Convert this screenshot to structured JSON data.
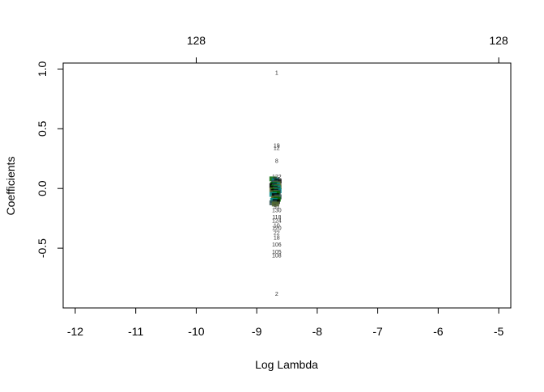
{
  "chart_data": {
    "type": "scatter",
    "title": "",
    "xlabel": "Log Lambda",
    "ylabel": "Coefficients",
    "xlim": [
      -12.2,
      -4.8
    ],
    "ylim": [
      -1.0,
      1.05
    ],
    "x_ticks": [
      -12,
      -11,
      -10,
      -9,
      -8,
      -7,
      -6,
      -5
    ],
    "y_ticks": [
      -0.5,
      0.0,
      0.5,
      1.0
    ],
    "top_axis": {
      "ticks": [
        -10,
        -5
      ],
      "labels": [
        "128",
        "128"
      ]
    },
    "grid": false,
    "labeled_points": [
      {
        "x": -8.67,
        "y": 0.97,
        "label": "1"
      },
      {
        "x": -8.67,
        "y": 0.36,
        "label": "19"
      },
      {
        "x": -8.67,
        "y": 0.34,
        "label": "12"
      },
      {
        "x": -8.67,
        "y": 0.23,
        "label": "8"
      },
      {
        "x": -8.67,
        "y": 0.1,
        "label": "122"
      },
      {
        "x": -8.67,
        "y": 0.08,
        "label": "17"
      },
      {
        "x": -8.67,
        "y": -0.15,
        "label": "91"
      },
      {
        "x": -8.67,
        "y": -0.18,
        "label": "130"
      },
      {
        "x": -8.67,
        "y": -0.24,
        "label": "118"
      },
      {
        "x": -8.67,
        "y": -0.27,
        "label": "124"
      },
      {
        "x": -8.67,
        "y": -0.31,
        "label": "10"
      },
      {
        "x": -8.67,
        "y": -0.33,
        "label": "120"
      },
      {
        "x": -8.67,
        "y": -0.37,
        "label": "22"
      },
      {
        "x": -8.67,
        "y": -0.41,
        "label": "18"
      },
      {
        "x": -8.67,
        "y": -0.47,
        "label": "106"
      },
      {
        "x": -8.67,
        "y": -0.53,
        "label": "105"
      },
      {
        "x": -8.67,
        "y": -0.56,
        "label": "108"
      },
      {
        "x": -8.67,
        "y": -0.88,
        "label": "2"
      }
    ],
    "cluster": {
      "x": -8.67,
      "y_values": [
        0.08,
        0.07,
        0.06,
        0.05,
        0.04,
        0.035,
        0.03,
        0.025,
        0.02,
        0.015,
        0.01,
        0.005,
        0.0,
        -0.005,
        -0.01,
        -0.015,
        -0.02,
        -0.025,
        -0.03,
        -0.035,
        -0.04,
        -0.05,
        -0.06,
        -0.07,
        -0.08,
        -0.09,
        -0.1,
        -0.11,
        -0.12,
        -0.13
      ],
      "colors": [
        "#006400",
        "#008b8b",
        "#000000",
        "#2f4f4f",
        "#556b2f"
      ]
    }
  }
}
